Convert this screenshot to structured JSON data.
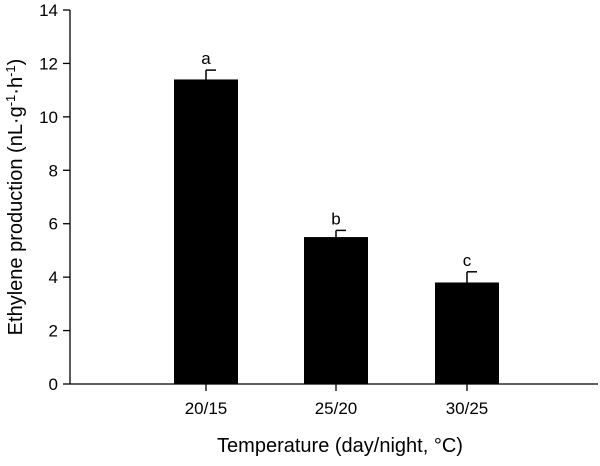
{
  "chart_data": {
    "type": "bar",
    "xlabel": "Temperature (day/night, °C)",
    "ylabel": {
      "prefix": "Ethylene production (nL·g",
      "sup1": "-1",
      "mid": "·h",
      "sup2": "-1",
      "suffix": ")"
    },
    "categories": [
      "20/15",
      "25/20",
      "30/25"
    ],
    "values": [
      11.4,
      5.5,
      3.8
    ],
    "errors": [
      0.35,
      0.25,
      0.4
    ],
    "significance_labels": [
      "a",
      "b",
      "c"
    ],
    "ylim": [
      0,
      14
    ],
    "yticks": [
      0,
      2,
      4,
      6,
      8,
      10,
      12,
      14
    ],
    "grid": false,
    "bar_color": "#000000"
  }
}
